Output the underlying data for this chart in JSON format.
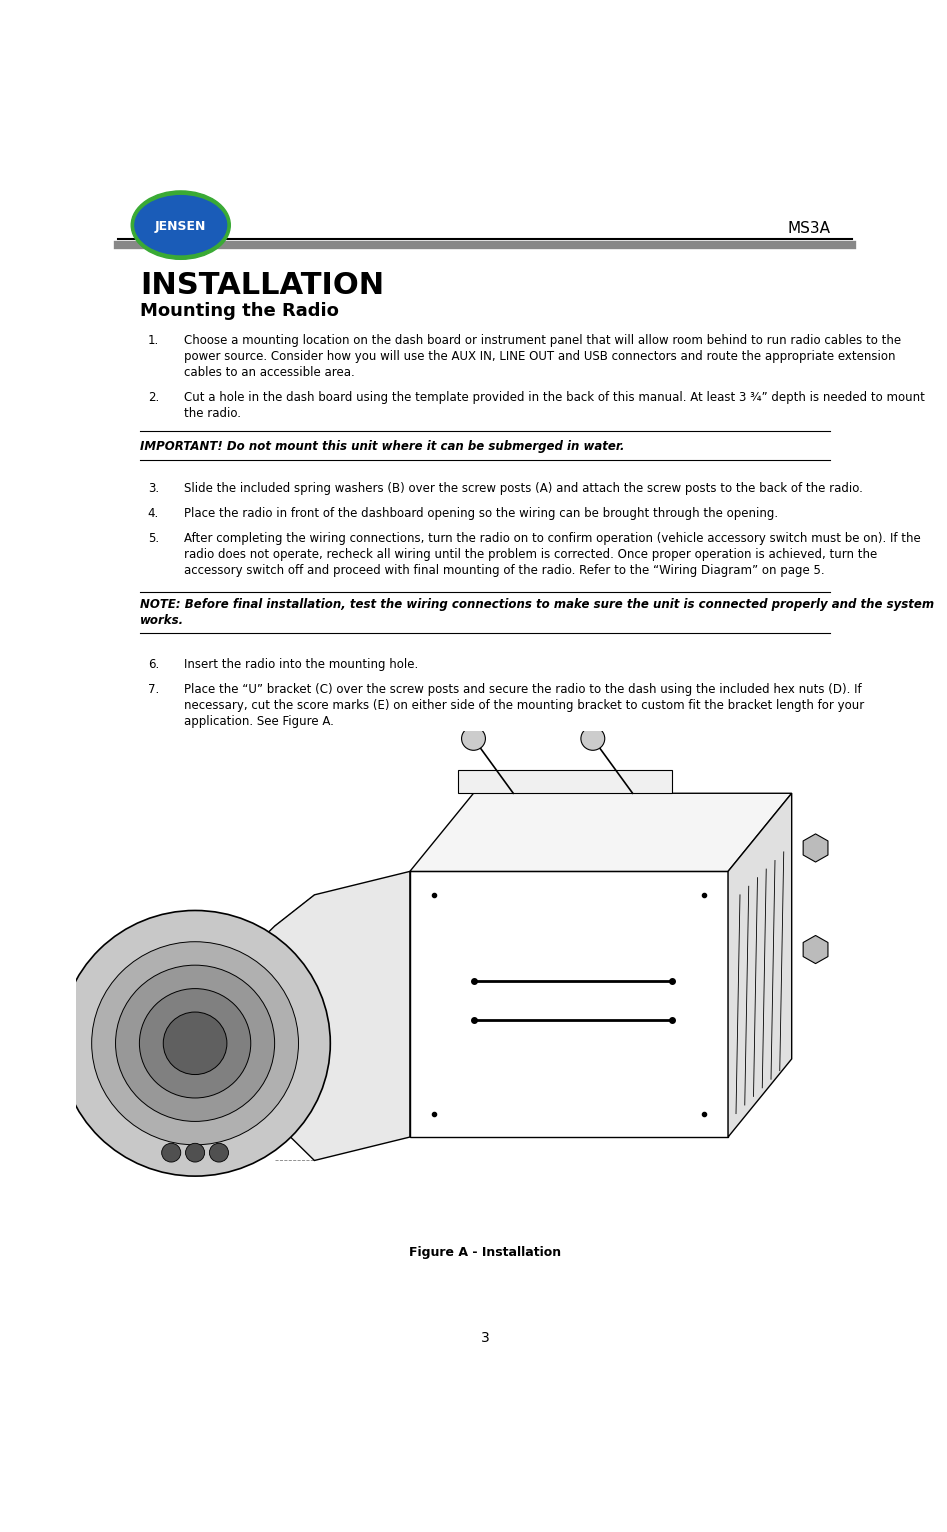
{
  "page_width": 9.47,
  "page_height": 15.32,
  "bg_color": "#ffffff",
  "header_model": "MS3A",
  "section_title": "INSTALLATION",
  "subsection_title": "Mounting the Radio",
  "items": [
    {
      "num": "1.",
      "text": "Choose a mounting location on the dash board or instrument panel that will allow room behind to run radio cables to the\npower source. Consider how you will use the AUX IN, LINE OUT and USB connectors and route the appropriate extension\ncables to an accessible area."
    },
    {
      "num": "2.",
      "text": "Cut a hole in the dash board using the template provided in the back of this manual. At least 3 ¾” depth is needed to mount\nthe radio."
    }
  ],
  "important_text": "IMPORTANT! Do not mount this unit where it can be submerged in water.",
  "items2": [
    {
      "num": "3.",
      "text": "Slide the included spring washers (B) over the screw posts (A) and attach the screw posts to the back of the radio."
    },
    {
      "num": "4.",
      "text": "Place the radio in front of the dashboard opening so the wiring can be brought through the opening."
    },
    {
      "num": "5.",
      "text": "After completing the wiring connections, turn the radio on to confirm operation (vehicle accessory switch must be on). If the\nradio does not operate, recheck all wiring until the problem is corrected. Once proper operation is achieved, turn the\naccessory switch off and proceed with final mounting of the radio. Refer to the “Wiring Diagram” on page 5."
    }
  ],
  "note_text": "NOTE: Before final installation, test the wiring connections to make sure the unit is connected properly and the system\nworks.",
  "items3": [
    {
      "num": "6.",
      "text": "Insert the radio into the mounting hole."
    },
    {
      "num": "7.",
      "text": "Place the “U” bracket (C) over the screw posts and secure the radio to the dash using the included hex nuts (D). If\nnecessary, cut the score marks (E) on either side of the mounting bracket to custom fit the bracket length for your\napplication. See Figure A."
    }
  ],
  "figure_caption": "Figure A - Installation",
  "page_number": "3",
  "logo_text": "JENSEN"
}
